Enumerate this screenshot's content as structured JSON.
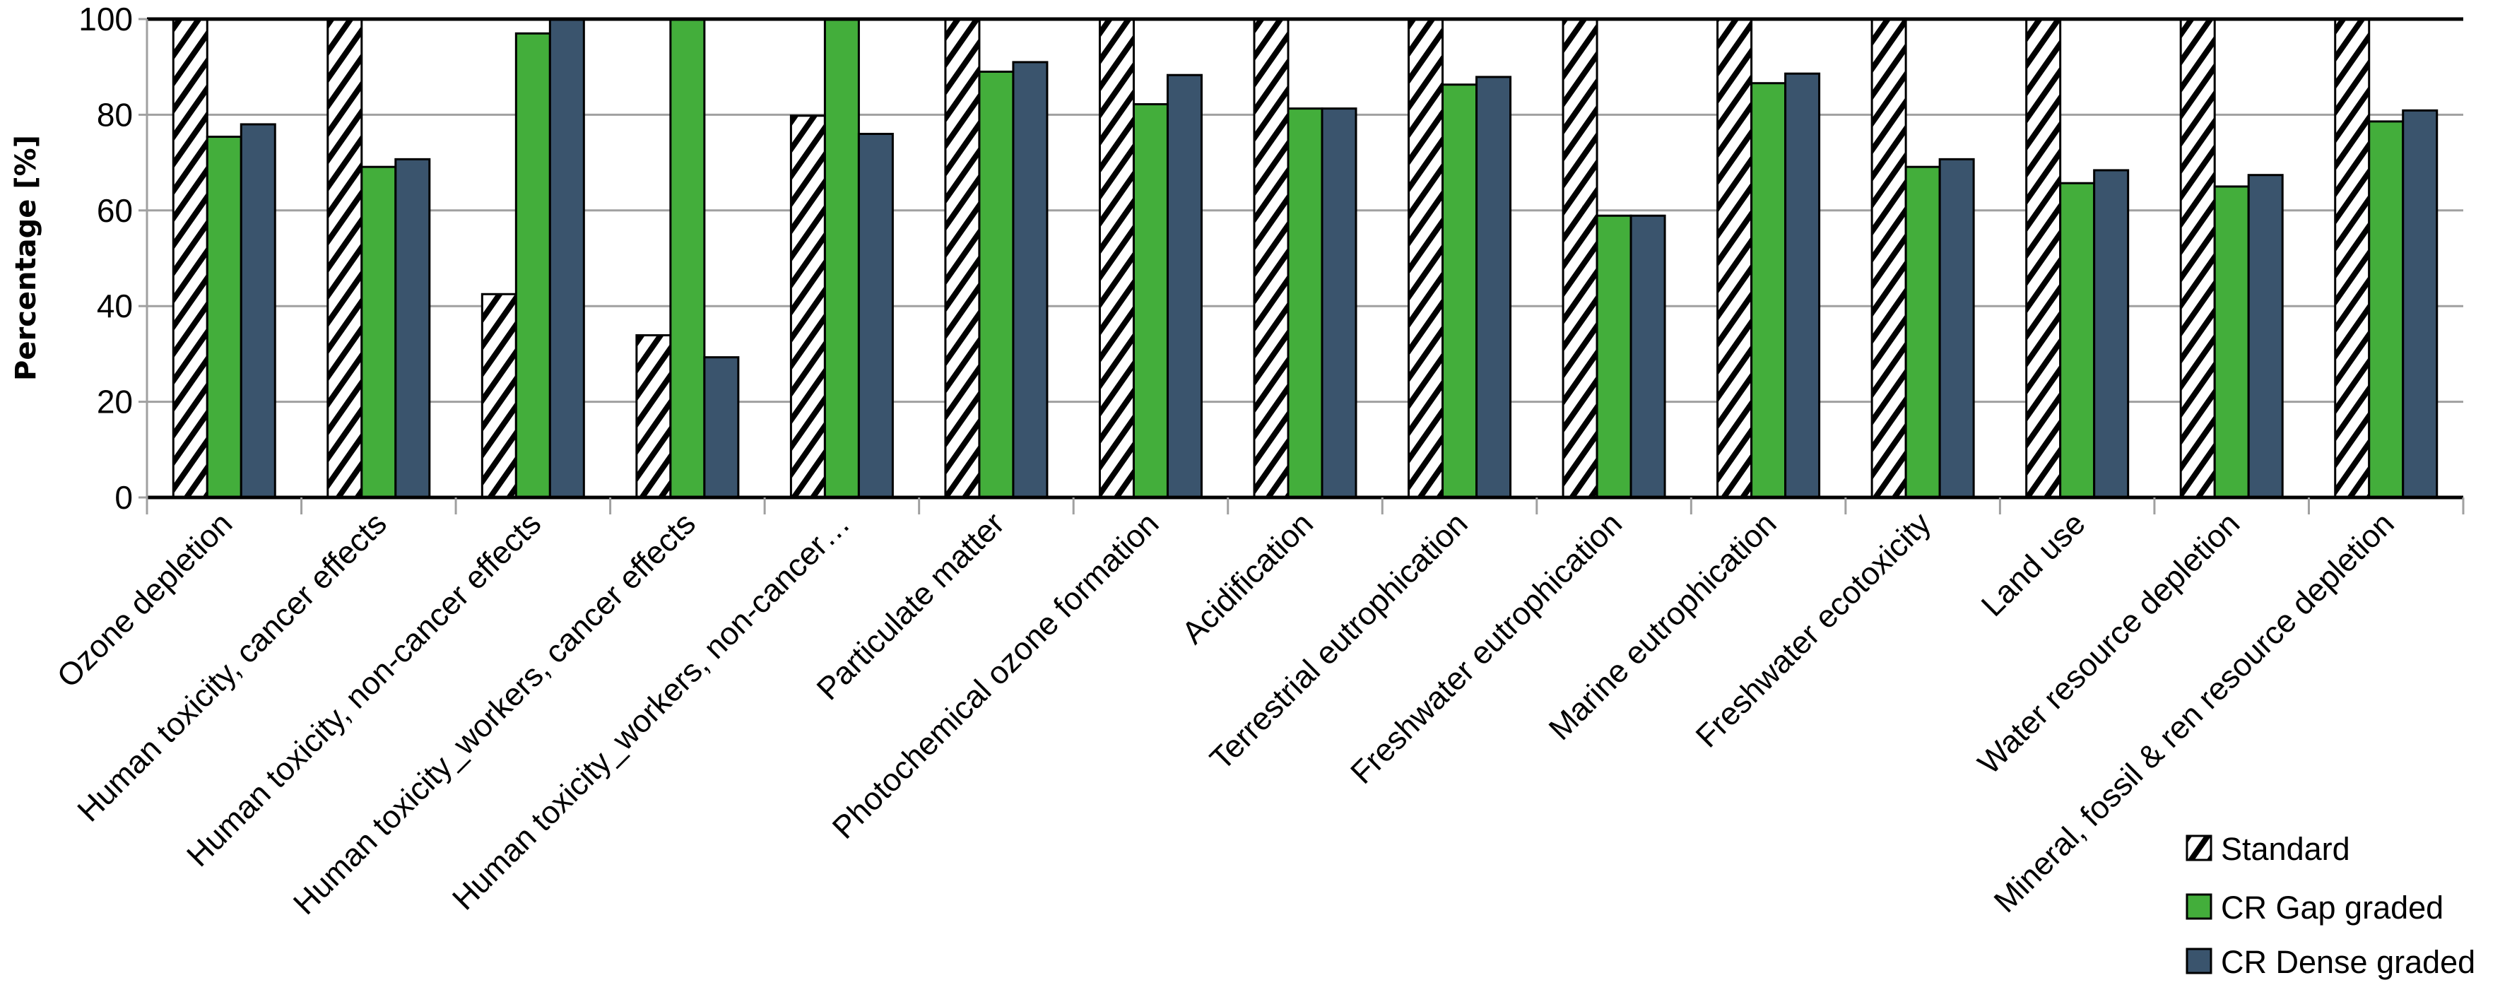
{
  "chart_data": {
    "type": "bar",
    "title": "",
    "xlabel": "",
    "ylabel": "Percentage [%]",
    "ylim": [
      0,
      100
    ],
    "yticks": [
      "0",
      "20",
      "40",
      "60",
      "80",
      "100"
    ],
    "grid": "horizontal",
    "legend_position": "bottom-right",
    "categories": [
      "Ozone depletion",
      "Human toxicity, cancer effects",
      "Human toxicity, non-cancer effects",
      "Human toxicity_workers, cancer effects",
      "Human toxicity_workers, non-cancer…",
      "Particulate matter",
      "Photochemical ozone formation",
      "Acidification",
      "Terrestrial eutrophication",
      "Freshwater eutrophication",
      "Marine eutrophication",
      "Freshwater ecotoxicity",
      "Land use",
      "Water resource depletion",
      "Mineral, fossil & ren resource depletion"
    ],
    "series": [
      {
        "name": "Standard",
        "fill": "hatched",
        "color": "#000000",
        "values": [
          100,
          100,
          42.5,
          33.9,
          79.8,
          100,
          100,
          100,
          100,
          100,
          100,
          100,
          100,
          100,
          100
        ]
      },
      {
        "name": "CR Gap graded",
        "color": "#43ae3b",
        "values": [
          75.4,
          69.1,
          97.0,
          100,
          100,
          89.0,
          82.2,
          81.3,
          86.3,
          58.9,
          86.6,
          69.1,
          65.7,
          65.0,
          78.6
        ]
      },
      {
        "name": "CR Dense graded",
        "color": "#3a546d",
        "values": [
          78.0,
          70.7,
          100,
          29.3,
          76.0,
          91.0,
          88.3,
          81.3,
          87.9,
          58.9,
          88.6,
          70.7,
          68.4,
          67.4,
          80.9
        ]
      }
    ]
  }
}
